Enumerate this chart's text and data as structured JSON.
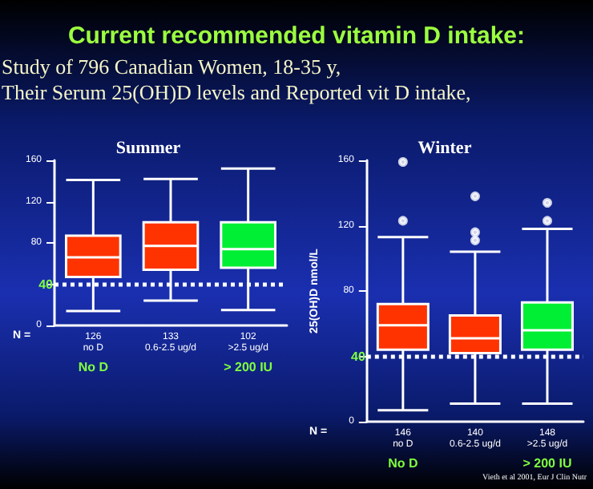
{
  "chart_data": [
    {
      "type": "box",
      "title": "Summer",
      "categories": [
        "126\nno D",
        "133\n0.6-2.5 ug/d",
        "102\n>2.5 ug/d"
      ],
      "colors": [
        "#ff3300",
        "#ff3300",
        "#00ee33"
      ],
      "boxes": [
        {
          "low": 14,
          "q1": 47,
          "median": 66,
          "q3": 87,
          "high": 141
        },
        {
          "low": 24,
          "q1": 54,
          "median": 77,
          "q3": 100,
          "high": 142
        },
        {
          "low": 15,
          "q1": 56,
          "median": 74,
          "q3": 100,
          "high": 152
        }
      ],
      "ylim": [
        0,
        160
      ],
      "yticks": [
        0,
        {
          "value": 40,
          "label": null
        },
        80,
        120,
        160
      ],
      "grid": false,
      "ref_lines": [
        {
          "axis": "y",
          "value": 40,
          "label": "40",
          "color": "#ffffff",
          "line_style": "dotted"
        }
      ],
      "annotations": [
        "Current recommended vitamin D intake:",
        "Study of 796 Canadian Women, 18-35 y,",
        "Their Serum 25(OH)D levels and Reported vit D intake,",
        "N =",
        "No D",
        "> 200 IU"
      ]
    },
    {
      "type": "box",
      "title": "Winter",
      "ylabel": "25(OH)D nmol/L",
      "categories": [
        "146\nno D",
        "140\n0.6-2.5 ug/d",
        "148\n>2.5 ug/d"
      ],
      "colors": [
        "#ff3300",
        "#ff3300",
        "#00ee33"
      ],
      "boxes": [
        {
          "low": 7,
          "q1": 44,
          "median": 59,
          "q3": 72,
          "high": 113,
          "outliers": [
            123,
            159
          ]
        },
        {
          "low": 11,
          "q1": 42,
          "median": 51,
          "q3": 65,
          "high": 104,
          "outliers": [
            111,
            116,
            138
          ]
        },
        {
          "low": 11,
          "q1": 44,
          "median": 56,
          "q3": 73,
          "high": 118,
          "outliers": [
            123,
            134
          ]
        }
      ],
      "ylim": [
        0,
        160
      ],
      "yticks": [
        0,
        {
          "value": 40,
          "label": null
        },
        80,
        120,
        160
      ],
      "grid": false,
      "ref_lines": [
        {
          "axis": "y",
          "value": 40,
          "label": "40",
          "color": "#ffffff",
          "line_style": "dotted"
        }
      ],
      "annotations": [
        "N =",
        "No D",
        "> 200 IU",
        "Vieth et al 2001, Eur J Clin Nutr"
      ]
    }
  ]
}
